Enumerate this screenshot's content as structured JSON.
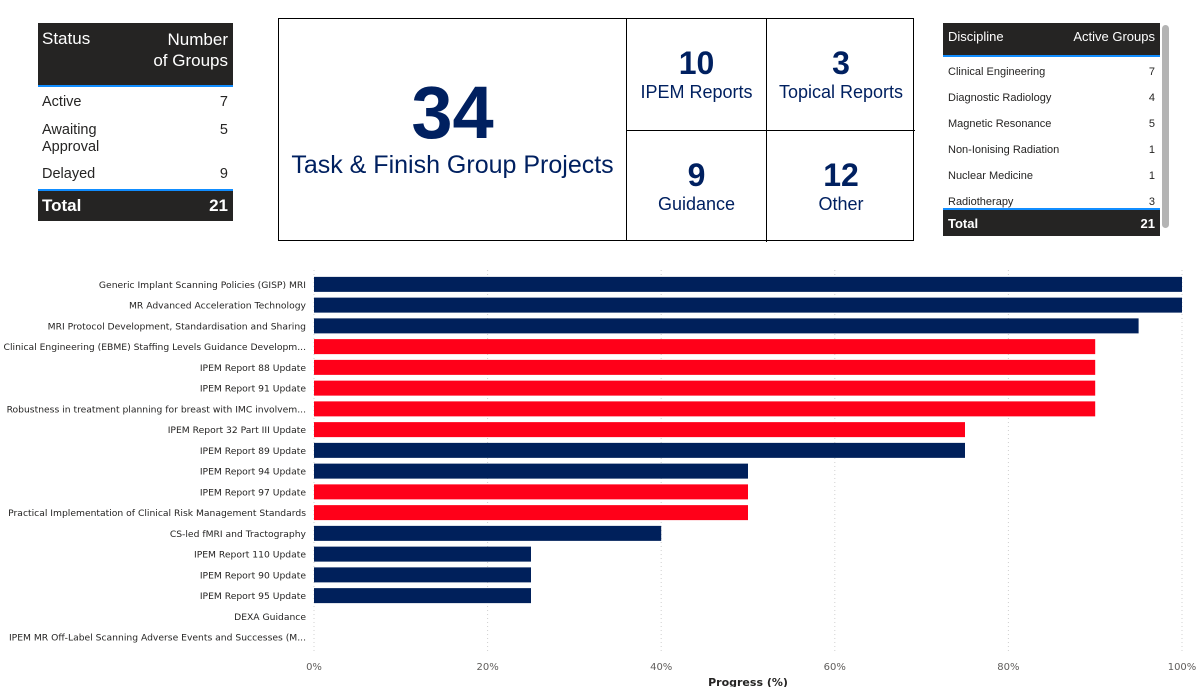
{
  "status_table": {
    "headers": [
      "Status",
      "Number of Groups"
    ],
    "header_line1": "Number",
    "header_line2": "of Groups",
    "rows": [
      {
        "status": "Active",
        "count": "7"
      },
      {
        "status_line1": "Awaiting",
        "status_line2": "Approval",
        "status": "Awaiting Approval",
        "count": "5"
      },
      {
        "status": "Delayed",
        "count": "9"
      }
    ],
    "total_label": "Total",
    "total_value": "21"
  },
  "kpis": {
    "main": {
      "value": "34",
      "label": "Task & Finish Group Projects"
    },
    "cards": [
      {
        "value": "10",
        "label": "IPEM Reports"
      },
      {
        "value": "3",
        "label": "Topical Reports"
      },
      {
        "value": "9",
        "label": "Guidance"
      },
      {
        "value": "12",
        "label": "Other"
      }
    ]
  },
  "discipline_table": {
    "headers": [
      "Discipline",
      "Active Groups"
    ],
    "rows": [
      {
        "discipline": "Clinical Engineering",
        "count": "7"
      },
      {
        "discipline": "Diagnostic Radiology",
        "count": "4"
      },
      {
        "discipline": "Magnetic Resonance",
        "count": "5"
      },
      {
        "discipline": "Non-Ionising Radiation",
        "count": "1"
      },
      {
        "discipline": "Nuclear Medicine",
        "count": "1"
      },
      {
        "discipline": "Radiotherapy",
        "count": "3"
      }
    ],
    "total_label": "Total",
    "total_value": "21"
  },
  "colors": {
    "navy": "#00205B",
    "red": "#FF0019",
    "header_bg": "#252423",
    "accent_line": "#118DFF"
  },
  "chart_data": {
    "type": "bar",
    "orientation": "horizontal",
    "title": "",
    "xlabel": "Progress (%)",
    "ylabel": "",
    "xlim": [
      0,
      100
    ],
    "xticks": [
      "0%",
      "20%",
      "40%",
      "60%",
      "80%",
      "100%"
    ],
    "grid": true,
    "categories": [
      "Generic Implant Scanning Policies (GISP) MRI",
      "MR Advanced Acceleration Technology",
      "MRI Protocol Development, Standardisation and Sharing",
      "Clinical Engineering (EBME) Staffing Levels Guidance Developm...",
      "IPEM Report 88 Update",
      "IPEM Report 91 Update",
      "Robustness in treatment planning for breast with IMC involvem...",
      "IPEM Report 32 Part III Update",
      "IPEM Report 89 Update",
      "IPEM Report 94 Update",
      "IPEM Report 97 Update",
      "Practical Implementation of Clinical Risk Management Standards",
      "CS-led fMRI and Tractography",
      "IPEM Report 110 Update",
      "IPEM Report 90 Update",
      "IPEM Report 95 Update",
      "DEXA Guidance",
      "IPEM MR Off-Label Scanning Adverse Events and Successes (M..."
    ],
    "values": [
      100,
      100,
      95,
      90,
      90,
      90,
      90,
      75,
      75,
      50,
      50,
      50,
      40,
      25,
      25,
      25,
      0,
      0
    ],
    "bar_colors": [
      "navy",
      "navy",
      "navy",
      "red",
      "red",
      "red",
      "red",
      "red",
      "navy",
      "navy",
      "red",
      "red",
      "navy",
      "navy",
      "navy",
      "navy",
      "navy",
      "navy"
    ]
  }
}
